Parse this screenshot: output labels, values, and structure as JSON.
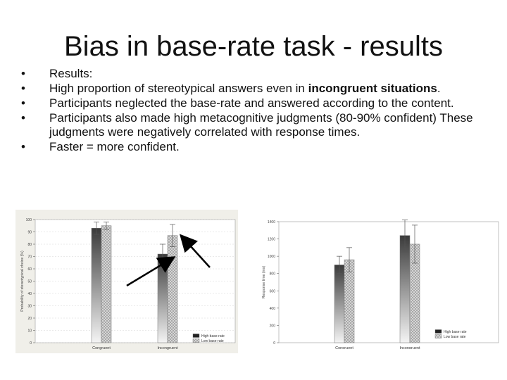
{
  "slide": {
    "title": "Bias in base-rate task - results",
    "bullets": [
      {
        "text": "Results:"
      },
      {
        "text": "High proportion of stereotypical answers even in ",
        "bold": "incongruent situations",
        "tail": "."
      },
      {
        "text": "Participants neglected the base-rate and answered according to the content."
      },
      {
        "text": "Participants also made high metacognitive judgments (80-90% confident) These judgments were negatively correlated with response times."
      },
      {
        "text": "Faster = more confident."
      }
    ]
  },
  "colors": {
    "high_base_rate": "#3a3a3a",
    "low_base_rate": "#dcdcdc",
    "arrow": "#000000"
  },
  "chart_data": [
    {
      "type": "bar",
      "categories": [
        "Congruent",
        "Incongruent"
      ],
      "ylabel": "Probability of stereotypical choice (%)",
      "ylim": [
        0,
        100
      ],
      "yticks": [
        0,
        10,
        20,
        30,
        40,
        50,
        60,
        70,
        80,
        90,
        100
      ],
      "series": [
        {
          "name": "High base-rate",
          "values": [
            93,
            72
          ],
          "error": [
            5,
            8
          ]
        },
        {
          "name": "Low base-rate",
          "values": [
            95,
            87
          ],
          "error": [
            3,
            9
          ]
        }
      ],
      "legend": "bottom-right",
      "grid": true
    },
    {
      "type": "bar",
      "categories": [
        "Congruent",
        "Incongruent"
      ],
      "ylabel": "Response time (ms)",
      "ylim": [
        0,
        1400
      ],
      "yticks": [
        0,
        200,
        400,
        600,
        800,
        1000,
        1200,
        1400
      ],
      "series": [
        {
          "name": "High base rate",
          "values": [
            900,
            1240
          ],
          "error": [
            100,
            180
          ]
        },
        {
          "name": "Low base rate",
          "values": [
            960,
            1140
          ],
          "error": [
            140,
            220
          ]
        }
      ],
      "legend": "bottom-right",
      "grid": false
    }
  ]
}
